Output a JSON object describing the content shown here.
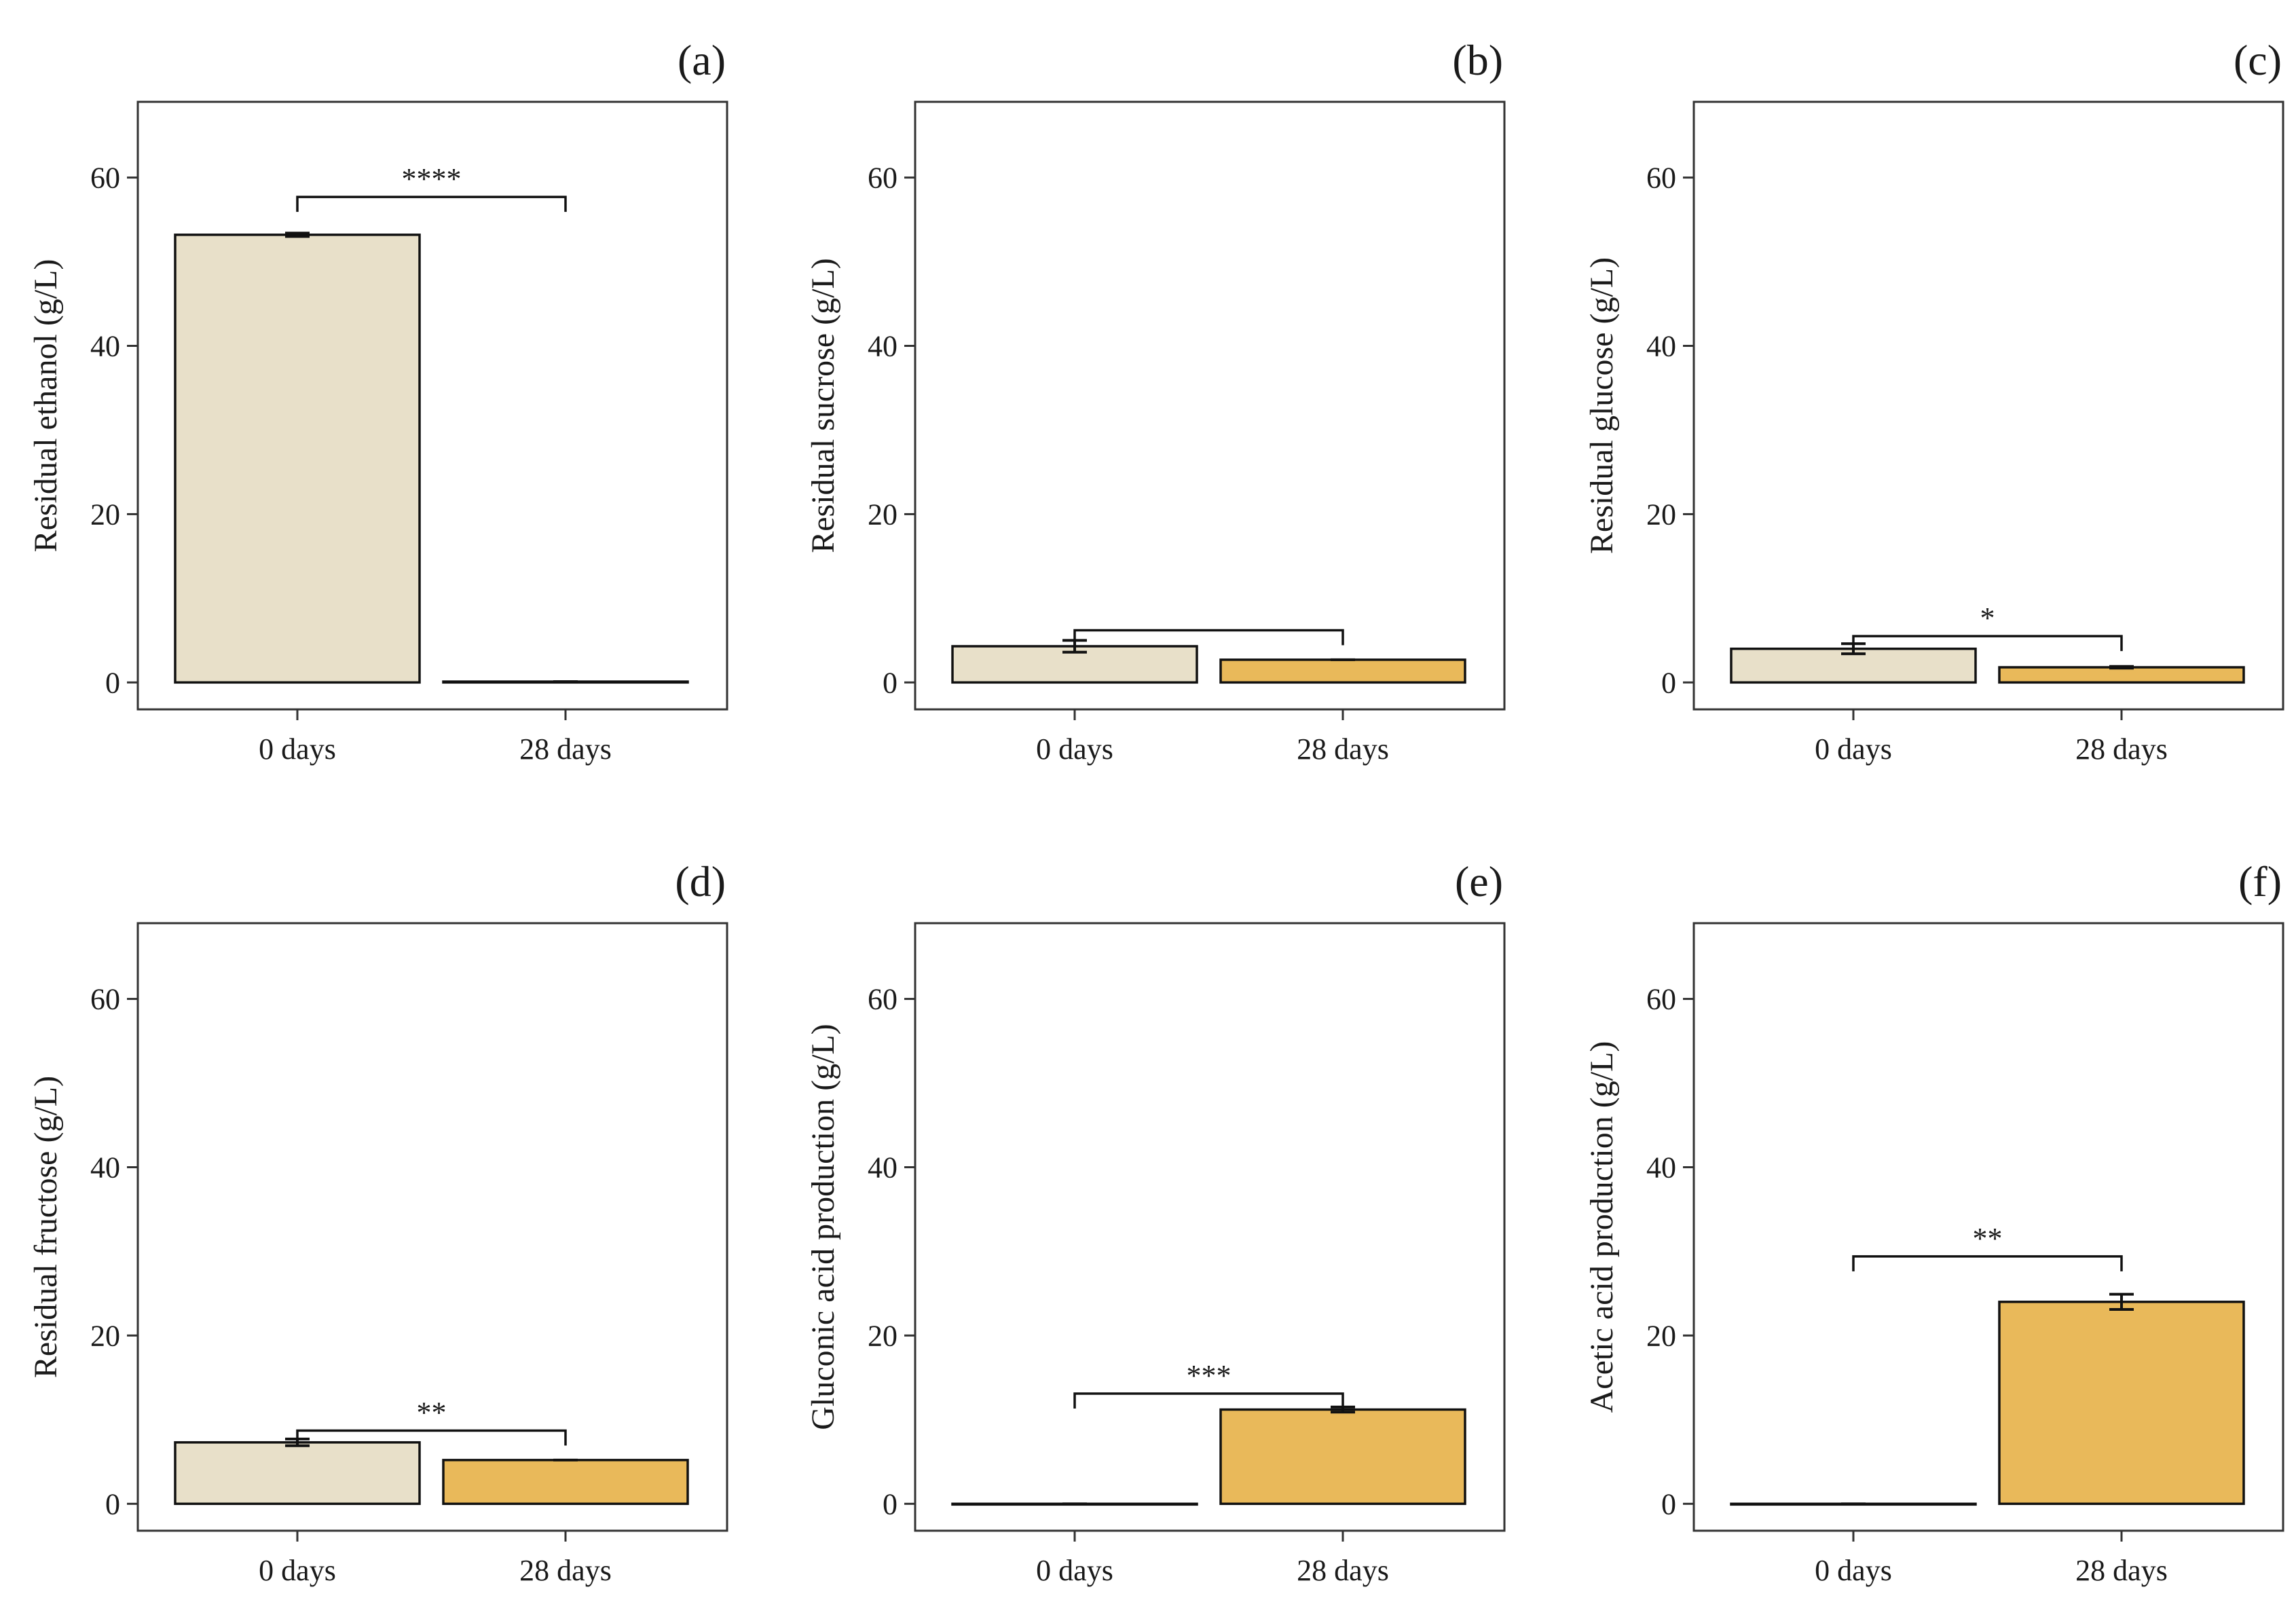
{
  "figure": {
    "bar_colors": {
      "0 days": "#e8e0c9",
      "28 days": "#e9b95a"
    },
    "axis_color": "#333333"
  },
  "chart_data": [
    {
      "type": "bar",
      "panel": "(a)",
      "title": "",
      "ylabel": "Residual ethanol (g/L)",
      "xlabel": "",
      "categories": [
        "0 days",
        "28 days"
      ],
      "values": [
        53.2,
        0.1
      ],
      "errors": [
        0.2,
        0.0
      ],
      "ylim": [
        -3.2,
        69.0
      ],
      "yticks": [
        0,
        20,
        40,
        60
      ],
      "significance": "****",
      "bracket_y": 57.7
    },
    {
      "type": "bar",
      "panel": "(b)",
      "title": "",
      "ylabel": "Residual sucrose (g/L)",
      "xlabel": "",
      "categories": [
        "0 days",
        "28 days"
      ],
      "values": [
        4.3,
        2.7
      ],
      "errors": [
        0.7,
        0.0
      ],
      "ylim": [
        -3.2,
        69.0
      ],
      "yticks": [
        0,
        20,
        40,
        60
      ],
      "significance": "",
      "bracket_y": 6.2
    },
    {
      "type": "bar",
      "panel": "(c)",
      "title": "",
      "ylabel": "Residual glucose (g/L)",
      "xlabel": "",
      "categories": [
        "0 days",
        "28 days"
      ],
      "values": [
        4.0,
        1.8
      ],
      "errors": [
        0.6,
        0.1
      ],
      "ylim": [
        -3.2,
        69.0
      ],
      "yticks": [
        0,
        20,
        40,
        60
      ],
      "significance": "*",
      "bracket_y": 5.5
    },
    {
      "type": "bar",
      "panel": "(d)",
      "title": "",
      "ylabel": "Residual fructose (g/L)",
      "xlabel": "",
      "categories": [
        "0 days",
        "28 days"
      ],
      "values": [
        7.3,
        5.2
      ],
      "errors": [
        0.4,
        0.0
      ],
      "ylim": [
        -3.2,
        69.0
      ],
      "yticks": [
        0,
        20,
        40,
        60
      ],
      "significance": "**",
      "bracket_y": 8.7
    },
    {
      "type": "bar",
      "panel": "(e)",
      "title": "",
      "ylabel": "Gluconic acid production (g/L)",
      "xlabel": "",
      "categories": [
        "0 days",
        "28 days"
      ],
      "values": [
        0.0,
        11.2
      ],
      "errors": [
        0.0,
        0.3
      ],
      "ylim": [
        -3.2,
        69.0
      ],
      "yticks": [
        0,
        20,
        40,
        60
      ],
      "significance": "***",
      "bracket_y": 13.1
    },
    {
      "type": "bar",
      "panel": "(f)",
      "title": "",
      "ylabel": "Acetic acid production (g/L)",
      "xlabel": "",
      "categories": [
        "0 days",
        "28 days"
      ],
      "values": [
        0.0,
        24.0
      ],
      "errors": [
        0.0,
        0.9
      ],
      "ylim": [
        -3.2,
        69.0
      ],
      "yticks": [
        0,
        20,
        40,
        60
      ],
      "significance": "**",
      "bracket_y": 29.4
    }
  ]
}
